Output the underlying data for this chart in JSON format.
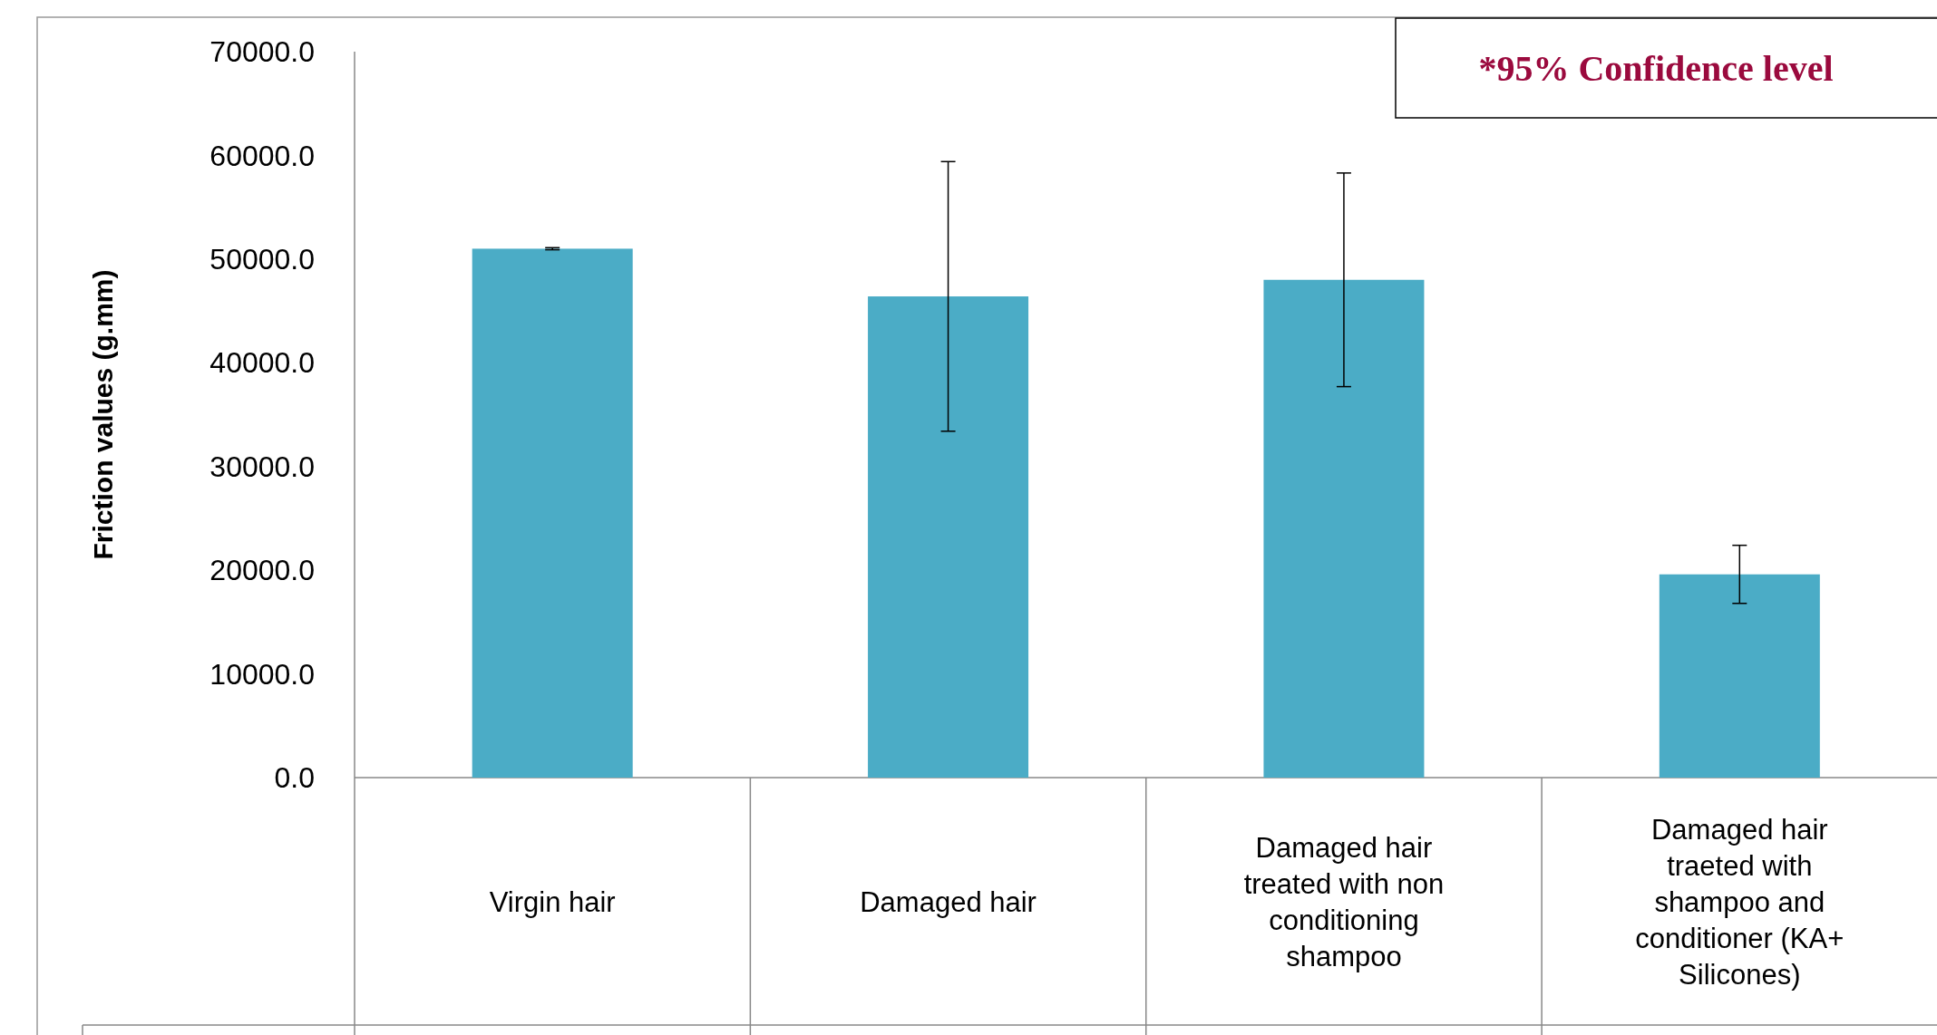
{
  "chart_data": {
    "type": "bar",
    "ylabel": "Friction values (g.mm)",
    "categories": [
      "Virgin hair",
      "Damaged hair",
      "Damaged hair treated with non conditioning shampoo",
      "Damaged hair traeted with shampoo and conditioner (KA+ Silicones)"
    ],
    "values": [
      51000,
      46400,
      48000,
      19600
    ],
    "color": "#4bacc6",
    "errors": [
      100,
      13000,
      10300,
      2800
    ],
    "ylim": [
      0,
      70000
    ],
    "yticks": [
      {
        "value": 0,
        "label": "0.0"
      },
      {
        "value": 10000,
        "label": "10000.0"
      },
      {
        "value": 20000,
        "label": "20000.0"
      },
      {
        "value": 30000,
        "label": "30000.0"
      },
      {
        "value": 40000,
        "label": "40000.0"
      },
      {
        "value": 50000,
        "label": "50000.0"
      },
      {
        "value": 60000,
        "label": "60000.0"
      },
      {
        "value": 70000,
        "label": "70000.0"
      }
    ],
    "annotations": [
      "*95% Confidence level"
    ]
  }
}
